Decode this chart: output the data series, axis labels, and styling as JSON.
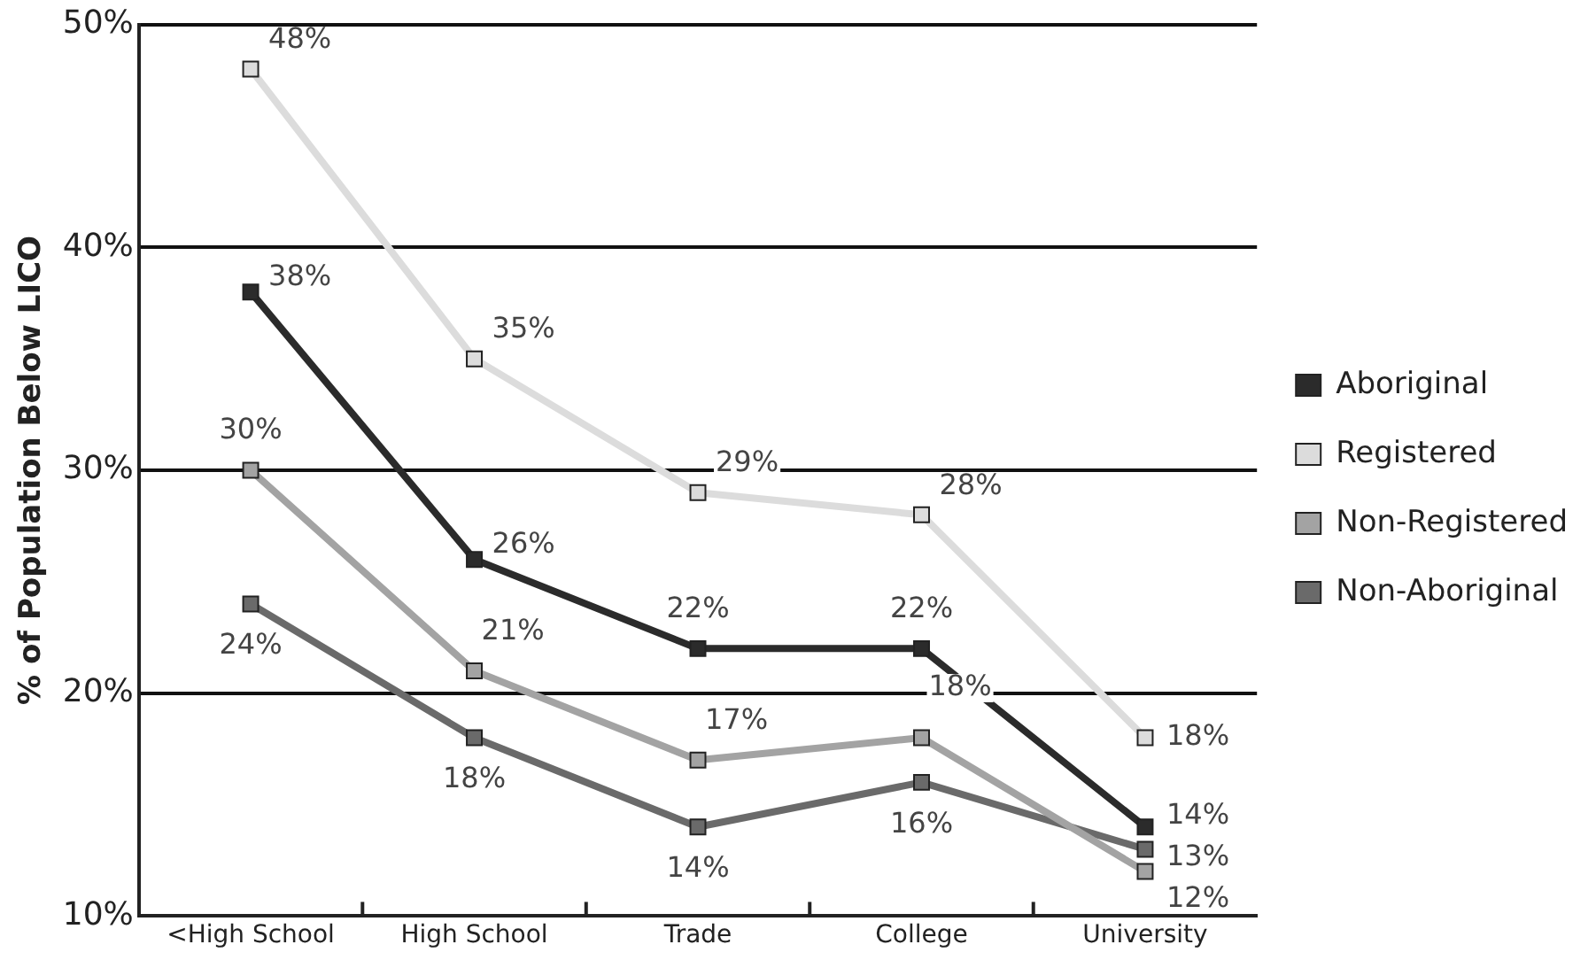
{
  "chart_data": {
    "type": "line",
    "ylabel": "% of Population Below LICO",
    "categories": [
      "<High School",
      "High School",
      "Trade",
      "College",
      "University"
    ],
    "series": [
      {
        "name": "Aboriginal",
        "color": "#2b2b2b",
        "values": [
          38,
          26,
          22,
          22,
          14
        ],
        "value_labels": [
          "38%",
          "26%",
          "22%",
          "22%",
          "14%"
        ]
      },
      {
        "name": "Registered",
        "color": "#dcdcdc",
        "values": [
          48,
          35,
          29,
          28,
          18
        ],
        "value_labels": [
          "48%",
          "35%",
          "29%",
          "28%",
          "18%"
        ]
      },
      {
        "name": "Non-Registered",
        "color": "#a3a3a3",
        "values": [
          30,
          21,
          17,
          18,
          12
        ],
        "value_labels": [
          "30%",
          "21%",
          "17%",
          "18%",
          "12%"
        ]
      },
      {
        "name": "Non-Aboriginal",
        "color": "#6a6a6a",
        "values": [
          24,
          18,
          14,
          16,
          13
        ],
        "value_labels": [
          "24%",
          "18%",
          "14%",
          "16%",
          "13%"
        ]
      }
    ],
    "ylim": [
      10,
      50
    ],
    "yticks": [
      {
        "value": 10,
        "label": "10%"
      },
      {
        "value": 20,
        "label": "20%"
      },
      {
        "value": 30,
        "label": "30%"
      },
      {
        "value": 40,
        "label": "40%"
      },
      {
        "value": 50,
        "label": "50%"
      }
    ],
    "grid": "y",
    "legend": "right",
    "marker": "square",
    "line_style": "solid"
  }
}
